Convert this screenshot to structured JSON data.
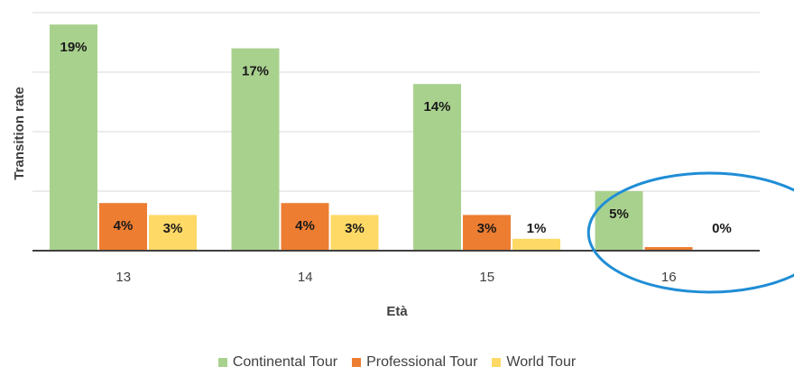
{
  "chart_data": {
    "type": "bar",
    "xlabel": "Età",
    "ylabel": "Transition rate",
    "categories": [
      "13",
      "14",
      "15",
      "16"
    ],
    "series": [
      {
        "name": "Continental Tour",
        "color": "#a9d18e",
        "values": [
          19,
          17,
          14,
          5
        ],
        "labels": [
          "19%",
          "17%",
          "14%",
          "5%"
        ]
      },
      {
        "name": "Professional Tour",
        "color": "#ed7d31",
        "values": [
          4,
          4,
          3,
          0.3
        ],
        "labels": [
          "4%",
          "4%",
          "3%",
          "0%"
        ]
      },
      {
        "name": "World Tour",
        "color": "#ffd966",
        "values": [
          3,
          3,
          1,
          0
        ],
        "labels": [
          "3%",
          "3%",
          "1%",
          ""
        ]
      }
    ],
    "ylim": [
      0,
      20
    ],
    "grid": true,
    "legend": "bottom",
    "annotation": {
      "shape": "ellipse",
      "color": "#1f8dd6",
      "around_category": "16"
    }
  }
}
